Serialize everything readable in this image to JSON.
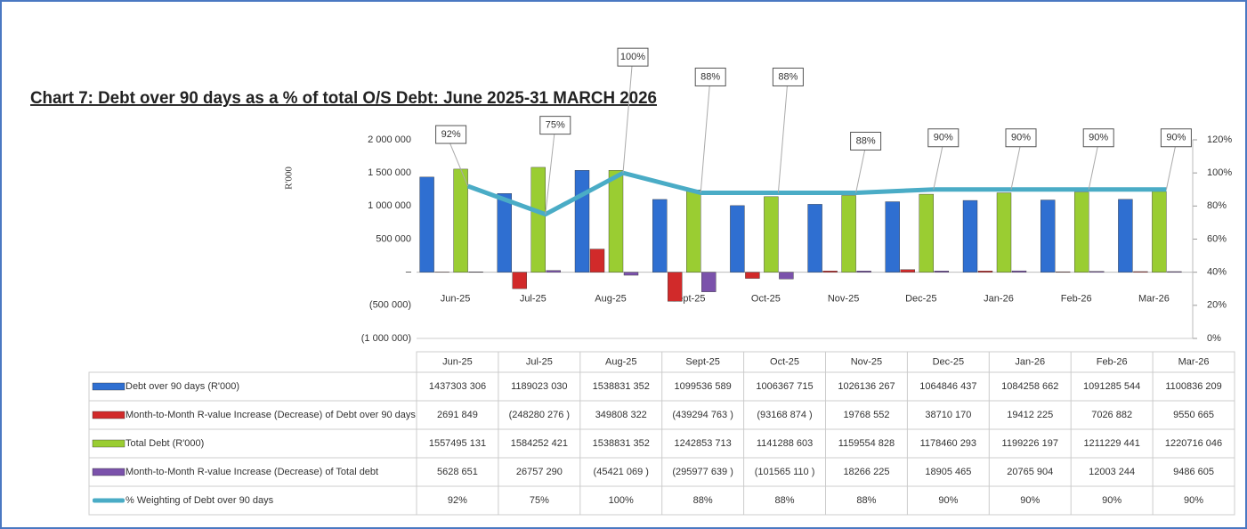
{
  "chart_data": {
    "type": "bar",
    "title": "Chart 7: Debt over 90 days as a % of total O/S Debt: June 2025-31 MARCH 2026",
    "ylabel": "R'000",
    "categories": [
      "Jun-25",
      "Jul-25",
      "Aug-25",
      "Sept-25",
      "Oct-25",
      "Nov-25",
      "Dec-25",
      "Jan-26",
      "Feb-26",
      "Mar-26"
    ],
    "ylim": [
      -1000000,
      2000000
    ],
    "yticks": [
      {
        "value": -1000000,
        "label": "(1 000 000)"
      },
      {
        "value": -500000,
        "label": "(500 000)"
      },
      {
        "value": 0,
        "label": "–"
      },
      {
        "value": 500000,
        "label": "500 000"
      },
      {
        "value": 1000000,
        "label": "1 000 000"
      },
      {
        "value": 1500000,
        "label": "1 500 000"
      },
      {
        "value": 2000000,
        "label": "2 000 000"
      }
    ],
    "y2lim": [
      0,
      120
    ],
    "y2ticks": [
      {
        "value": 0,
        "label": "0%"
      },
      {
        "value": 20,
        "label": "20%"
      },
      {
        "value": 40,
        "label": "40%"
      },
      {
        "value": 60,
        "label": "60%"
      },
      {
        "value": 80,
        "label": "80%"
      },
      {
        "value": 100,
        "label": "100%"
      },
      {
        "value": 120,
        "label": "120%"
      }
    ],
    "grid": false,
    "series": [
      {
        "name": "Debt over 90 days (R'000)",
        "type": "bar",
        "color": "#2f6fd1",
        "values": [
          1437303.306,
          1189023.03,
          1538831.352,
          1099536.589,
          1006367.715,
          1026136.267,
          1064846.437,
          1084258.662,
          1091285.544,
          1100836.209
        ],
        "value_labels": [
          "1437303 306",
          "1189023 030",
          "1538831 352",
          "1099536 589",
          "1006367 715",
          "1026136 267",
          "1064846 437",
          "1084258 662",
          "1091285 544",
          "1100836 209"
        ]
      },
      {
        "name": "Month-to-Month R-value Increase (Decrease) of Debt over 90 days",
        "type": "bar",
        "color": "#d12a2a",
        "values": [
          2691.849,
          -248280.276,
          349808.322,
          -439294.763,
          -93168.874,
          19768.552,
          38710.17,
          19412.225,
          7026.882,
          9550.665
        ],
        "value_labels": [
          "2691 849",
          "(248280 276 )",
          "349808 322",
          "(439294 763 )",
          "(93168 874 )",
          "19768 552",
          "38710 170",
          "19412 225",
          "7026 882",
          "9550 665"
        ]
      },
      {
        "name": "Total Debt (R'000)",
        "type": "bar",
        "color": "#9acd32",
        "values": [
          1557495.131,
          1584252.421,
          1538831.352,
          1242853.713,
          1141288.603,
          1159554.828,
          1178460.293,
          1199226.197,
          1211229.441,
          1220716.046
        ],
        "value_labels": [
          "1557495 131",
          "1584252 421",
          "1538831 352",
          "1242853 713",
          "1141288 603",
          "1159554 828",
          "1178460 293",
          "1199226 197",
          "1211229 441",
          "1220716 046"
        ]
      },
      {
        "name": "Month-to-Month R-value Increase (Decrease) of Total debt",
        "type": "bar",
        "color": "#7b52ab",
        "values": [
          5628.651,
          26757.29,
          -45421.069,
          -295977.639,
          -101565.11,
          18266.225,
          18905.465,
          20765.904,
          12003.244,
          9486.605
        ],
        "value_labels": [
          "5628 651",
          "26757 290",
          "(45421 069 )",
          "(295977 639 )",
          "(101565 110 )",
          "18266 225",
          "18905 465",
          "20765 904",
          "12003 244",
          "9486 605"
        ]
      },
      {
        "name": "% Weighting of Debt over 90 days",
        "type": "line",
        "axis": "y2",
        "color": "#4aacc6",
        "values": [
          92,
          75,
          100,
          88,
          88,
          88,
          90,
          90,
          90,
          90
        ],
        "value_labels": [
          "92%",
          "75%",
          "100%",
          "88%",
          "88%",
          "88%",
          "90%",
          "90%",
          "90%",
          "90%"
        ]
      }
    ]
  }
}
